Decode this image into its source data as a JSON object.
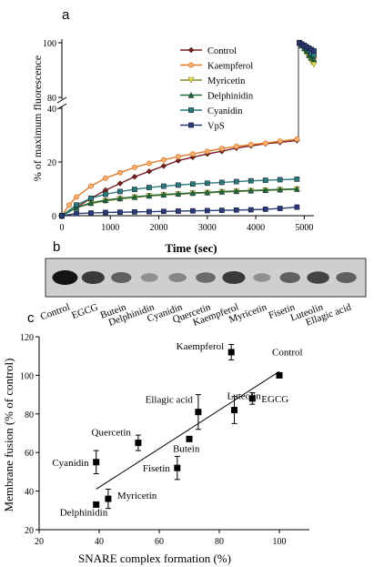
{
  "panels": {
    "a": {
      "letter": "a"
    },
    "b": {
      "letter": "b"
    },
    "c": {
      "letter": "c"
    }
  },
  "chart_data": [
    {
      "id": "a",
      "type": "line",
      "title": "",
      "xlabel": "Time (sec)",
      "ylabel": "% of maximum fluorescence",
      "xlim": [
        0,
        5200
      ],
      "x_ticks": [
        0,
        1000,
        2000,
        3000,
        4000,
        5000
      ],
      "y_axis_broken": true,
      "y_segments": [
        {
          "range": [
            0,
            40
          ],
          "ticks": [
            0,
            20,
            40
          ]
        },
        {
          "range": [
            80,
            100
          ],
          "ticks": [
            80,
            100
          ]
        }
      ],
      "legend": "top-center",
      "series": [
        {
          "name": "Control",
          "color": "#7a1f1f",
          "marker": "diamond",
          "x": [
            0,
            300,
            600,
            900,
            1200,
            1500,
            1800,
            2100,
            2400,
            2700,
            3000,
            3300,
            3600,
            3900,
            4200,
            4500,
            4850
          ],
          "y": [
            0,
            3,
            6.5,
            9.5,
            12,
            14.5,
            16.5,
            18.5,
            20.5,
            21.8,
            23,
            24,
            25.2,
            26,
            26.8,
            27.3,
            28
          ],
          "end_x": [
            4900,
            4950,
            5000,
            5050,
            5100,
            5150,
            5200
          ],
          "end_y": [
            100,
            99.5,
            99,
            98,
            97,
            96,
            95
          ]
        },
        {
          "name": "Kaempferol",
          "color": "#e07a2a",
          "marker": "circle",
          "x": [
            0,
            150,
            300,
            600,
            900,
            1200,
            1500,
            1800,
            2100,
            2400,
            2700,
            3000,
            3300,
            3600,
            3900,
            4200,
            4500,
            4850
          ],
          "y": [
            0,
            4,
            7,
            11,
            14,
            16,
            18,
            19.5,
            20.8,
            22,
            23,
            24,
            25,
            25.8,
            26.5,
            27,
            27.8,
            28.5
          ],
          "end_x": [
            4900,
            4950,
            5000,
            5050,
            5100,
            5150,
            5200
          ],
          "end_y": [
            100,
            99.5,
            99,
            98,
            96.5,
            95.5,
            94.5
          ]
        },
        {
          "name": "Myricetin",
          "color": "#8c8a2e",
          "marker": "triangle-down",
          "x": [
            0,
            300,
            600,
            900,
            1200,
            1500,
            1800,
            2100,
            2400,
            2700,
            3000,
            3300,
            3600,
            3900,
            4200,
            4500,
            4850
          ],
          "y": [
            0,
            3,
            4.5,
            5.5,
            6.2,
            6.8,
            7.3,
            7.7,
            8,
            8.3,
            8.5,
            8.8,
            9,
            9.2,
            9.4,
            9.6,
            9.8
          ],
          "end_x": [
            4900,
            4950,
            5000,
            5050,
            5100,
            5150,
            5200
          ],
          "end_y": [
            100,
            99,
            97.5,
            96,
            94.5,
            93,
            92
          ]
        },
        {
          "name": "Delphinidin",
          "color": "#1f6a3a",
          "marker": "triangle-up",
          "x": [
            0,
            300,
            600,
            900,
            1200,
            1500,
            1800,
            2100,
            2400,
            2700,
            3000,
            3300,
            3600,
            3900,
            4200,
            4500,
            4850
          ],
          "y": [
            0,
            3,
            4.8,
            5.8,
            6.5,
            7,
            7.5,
            7.9,
            8.2,
            8.5,
            8.7,
            9,
            9.2,
            9.4,
            9.6,
            9.8,
            10
          ],
          "end_x": [
            4900,
            4950,
            5000,
            5050,
            5100,
            5150,
            5200
          ],
          "end_y": [
            100,
            99,
            98,
            97,
            95.5,
            94.5,
            94
          ]
        },
        {
          "name": "Cyanidin",
          "color": "#2a7a7a",
          "marker": "square",
          "x": [
            0,
            300,
            600,
            900,
            1200,
            1500,
            1800,
            2100,
            2400,
            2700,
            3000,
            3300,
            3600,
            3900,
            4200,
            4500,
            4850
          ],
          "y": [
            0,
            4,
            6.5,
            8,
            9,
            9.8,
            10.5,
            11,
            11.4,
            11.8,
            12.1,
            12.4,
            12.7,
            13,
            13.2,
            13.4,
            13.6
          ],
          "end_x": [
            4900,
            4950,
            5000,
            5050,
            5100,
            5150,
            5200
          ],
          "end_y": [
            100,
            99.5,
            99,
            98,
            97,
            96,
            95.5
          ]
        },
        {
          "name": "VpS",
          "color": "#2a3a7a",
          "marker": "square",
          "x": [
            0,
            300,
            600,
            900,
            1200,
            1500,
            1800,
            2100,
            2400,
            2700,
            3000,
            3300,
            3600,
            3900,
            4200,
            4500,
            4850
          ],
          "y": [
            0,
            0.8,
            1,
            1.2,
            1.3,
            1.4,
            1.5,
            1.6,
            1.7,
            1.8,
            1.9,
            2,
            2.1,
            2.2,
            2.4,
            2.7,
            3.2
          ],
          "end_x": [
            4900,
            4950,
            5000,
            5050,
            5100,
            5150,
            5200
          ],
          "end_y": [
            100,
            99.5,
            99,
            98.5,
            98,
            97.5,
            97
          ]
        }
      ]
    },
    {
      "id": "c",
      "type": "scatter",
      "title": "",
      "xlabel": "SNARE complex formation (%)",
      "ylabel": "Membrane fusion (% of control)",
      "xlim": [
        20,
        110
      ],
      "ylim": [
        20,
        120
      ],
      "x_ticks": [
        20,
        40,
        60,
        80,
        100
      ],
      "y_ticks": [
        20,
        40,
        60,
        80,
        100,
        120
      ],
      "trendline": {
        "x": [
          39,
          100
        ],
        "y": [
          41,
          102
        ]
      },
      "points": [
        {
          "label": "Control",
          "x": 100,
          "y": 100,
          "err": 0
        },
        {
          "label": "Kaempferol",
          "x": 84,
          "y": 112,
          "err": 4
        },
        {
          "label": "EGCG",
          "x": 91,
          "y": 88,
          "err": 3
        },
        {
          "label": "Luteolin",
          "x": 85,
          "y": 82,
          "err": 7
        },
        {
          "label": "Ellagic acid",
          "x": 73,
          "y": 81,
          "err": 9
        },
        {
          "label": "Butein",
          "x": 70,
          "y": 67,
          "err": 0
        },
        {
          "label": "Quercetin",
          "x": 53,
          "y": 65,
          "err": 4
        },
        {
          "label": "Fisetin",
          "x": 66,
          "y": 52,
          "err": 6
        },
        {
          "label": "Cyanidin",
          "x": 39,
          "y": 55,
          "err": 6
        },
        {
          "label": "Myricetin",
          "x": 43,
          "y": 36,
          "err": 5
        },
        {
          "label": "Delphinidin",
          "x": 39,
          "y": 33,
          "err": 0
        }
      ]
    }
  ],
  "blot": {
    "type": "table",
    "lanes": [
      "Control",
      "EGCG",
      "Butein",
      "Delphinidin",
      "Cyanidin",
      "Quercetin",
      "Kaempferol",
      "Myricetin",
      "Fisetin",
      "Luteolin",
      "Ellagic acid"
    ],
    "intensity": [
      1.0,
      0.8,
      0.6,
      0.35,
      0.4,
      0.55,
      0.8,
      0.35,
      0.6,
      0.75,
      0.6
    ]
  }
}
